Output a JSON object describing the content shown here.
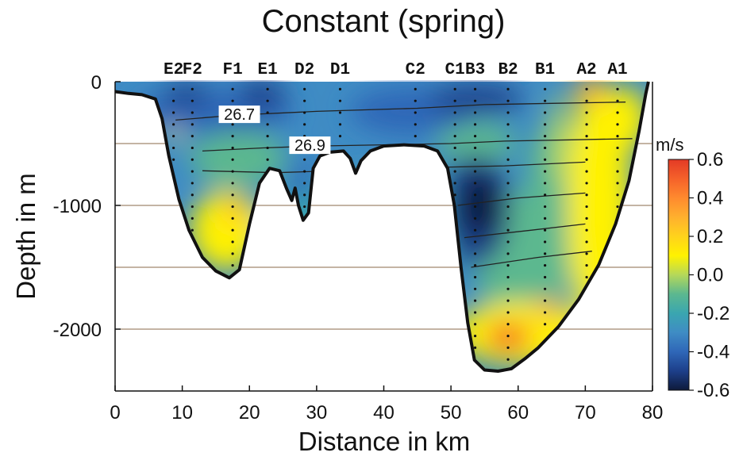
{
  "chart_data": {
    "type": "heatmap",
    "title": "Constant (spring)",
    "xlabel": "Distance in km",
    "ylabel": "Depth in m",
    "xlim": [
      0,
      80
    ],
    "ylim": [
      -2500,
      0
    ],
    "xticks": [
      0,
      10,
      20,
      30,
      40,
      50,
      60,
      70,
      80
    ],
    "yticks": [
      0,
      -1000,
      -2000
    ],
    "gridlines_y": [
      -500,
      -1000,
      -1500,
      -2000
    ],
    "colorbar": {
      "unit": "m/s",
      "ticks": [
        0.6,
        0.4,
        0.2,
        0.0,
        -0.2,
        -0.4,
        -0.6
      ],
      "range": [
        -0.6,
        0.6
      ],
      "colors": [
        "#0e1a3a",
        "#1d3f8a",
        "#2f67b8",
        "#3f8cc4",
        "#3aa6b0",
        "#5cb88f",
        "#b5d85a",
        "#fff200",
        "#ffd21c",
        "#ffb02e",
        "#ff8a2e",
        "#f5612a",
        "#e33a26"
      ]
    },
    "stations": [
      {
        "name": "E2",
        "x": 8.7,
        "bold": false
      },
      {
        "name": "F2",
        "x": 11.5,
        "bold": false
      },
      {
        "name": "F1",
        "x": 17.5,
        "bold": false
      },
      {
        "name": "E1",
        "x": 22.7,
        "bold": false
      },
      {
        "name": "D2",
        "x": 28.2,
        "bold": false
      },
      {
        "name": "D1",
        "x": 33.5,
        "bold": false
      },
      {
        "name": "C2",
        "x": 44.7,
        "bold": false
      },
      {
        "name": "C1",
        "x": 50.6,
        "bold": false
      },
      {
        "name": "B3",
        "x": 53.6,
        "bold": false
      },
      {
        "name": "B2",
        "x": 58.5,
        "bold": false
      },
      {
        "name": "B1",
        "x": 64.0,
        "bold": false
      },
      {
        "name": "A2",
        "x": 70.2,
        "bold": true
      },
      {
        "name": "A1",
        "x": 74.8,
        "bold": true
      }
    ],
    "isopycnal_labels": [
      {
        "text": "26.7",
        "x": 18.5,
        "depth": -270
      },
      {
        "text": "26.9",
        "x": 29.0,
        "depth": -520
      }
    ],
    "bathymetry": [
      [
        0,
        -80
      ],
      [
        2,
        -95
      ],
      [
        4,
        -105
      ],
      [
        6,
        -140
      ],
      [
        7,
        -300
      ],
      [
        8,
        -600
      ],
      [
        9.5,
        -950
      ],
      [
        11,
        -1200
      ],
      [
        13,
        -1420
      ],
      [
        15,
        -1530
      ],
      [
        17,
        -1585
      ],
      [
        18.5,
        -1520
      ],
      [
        20,
        -1150
      ],
      [
        21.5,
        -820
      ],
      [
        23,
        -700
      ],
      [
        24.5,
        -720
      ],
      [
        25.5,
        -860
      ],
      [
        26.3,
        -960
      ],
      [
        26.8,
        -860
      ],
      [
        27.3,
        -1000
      ],
      [
        28,
        -1120
      ],
      [
        28.8,
        -1060
      ],
      [
        29.5,
        -700
      ],
      [
        30.5,
        -600
      ],
      [
        32,
        -570
      ],
      [
        34,
        -560
      ],
      [
        35,
        -620
      ],
      [
        35.8,
        -740
      ],
      [
        36.6,
        -640
      ],
      [
        38,
        -560
      ],
      [
        40,
        -520
      ],
      [
        43,
        -510
      ],
      [
        46,
        -520
      ],
      [
        48,
        -560
      ],
      [
        49.5,
        -700
      ],
      [
        50.5,
        -1000
      ],
      [
        51.5,
        -1500
      ],
      [
        52.5,
        -1950
      ],
      [
        53.5,
        -2250
      ],
      [
        55,
        -2330
      ],
      [
        57,
        -2340
      ],
      [
        59,
        -2320
      ],
      [
        61,
        -2240
      ],
      [
        63,
        -2150
      ],
      [
        66,
        -1980
      ],
      [
        69,
        -1760
      ],
      [
        72,
        -1480
      ],
      [
        74.5,
        -1150
      ],
      [
        76.5,
        -800
      ],
      [
        78,
        -400
      ],
      [
        79,
        -100
      ],
      [
        79.4,
        0
      ]
    ],
    "isopycnals": [
      [
        [
          9,
          -310
        ],
        [
          18,
          -270
        ],
        [
          30,
          -240
        ],
        [
          45,
          -215
        ],
        [
          55,
          -185
        ],
        [
          65,
          -175
        ],
        [
          76,
          -165
        ]
      ],
      [
        [
          13,
          -560
        ],
        [
          22,
          -535
        ],
        [
          30,
          -520
        ],
        [
          40,
          -510
        ],
        [
          50,
          -500
        ],
        [
          58,
          -480
        ],
        [
          68,
          -470
        ],
        [
          77,
          -460
        ]
      ],
      [
        [
          13,
          -720
        ],
        [
          24,
          -735
        ],
        [
          50,
          -690
        ],
        [
          58,
          -680
        ],
        [
          70,
          -650
        ]
      ],
      [
        [
          51,
          -1000
        ],
        [
          60,
          -940
        ],
        [
          70,
          -900
        ]
      ],
      [
        [
          52,
          -1260
        ],
        [
          62,
          -1200
        ],
        [
          70,
          -1150
        ]
      ],
      [
        [
          53,
          -1500
        ],
        [
          63,
          -1420
        ],
        [
          71,
          -1370
        ]
      ]
    ]
  }
}
